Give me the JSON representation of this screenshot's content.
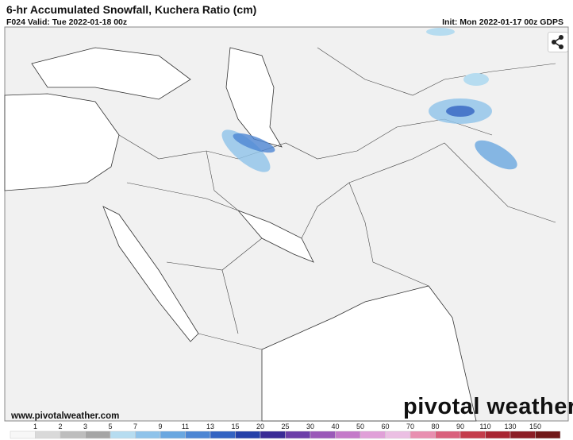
{
  "header": {
    "title": "6-hr Accumulated Snowfall, Kuchera Ratio (cm)",
    "valid": "F024 Valid: Tue 2022-01-18 00z",
    "init": "Init: Mon 2022-01-17 00z GDPS"
  },
  "footer": {
    "website": "www.pivotalweather.com",
    "logo": "pivotal weather"
  },
  "legend": {
    "labels": [
      1,
      2,
      3,
      5,
      7,
      9,
      11,
      13,
      15,
      20,
      25,
      30,
      40,
      50,
      60,
      70,
      80,
      90,
      110,
      130,
      150
    ],
    "colors": [
      "#f7f7f7",
      "#d9d9d9",
      "#bdbdbd",
      "#a5a5a5",
      "#b6dcf0",
      "#8fc3ea",
      "#6aa7e0",
      "#4d86d3",
      "#3363c2",
      "#2440a8",
      "#3a2c96",
      "#6c3fa8",
      "#9a59b8",
      "#c47ac9",
      "#e0a0d8",
      "#ebbfe3",
      "#e88fb0",
      "#d9607c",
      "#c43d4c",
      "#a82633",
      "#8c1e26",
      "#701818"
    ]
  }
}
